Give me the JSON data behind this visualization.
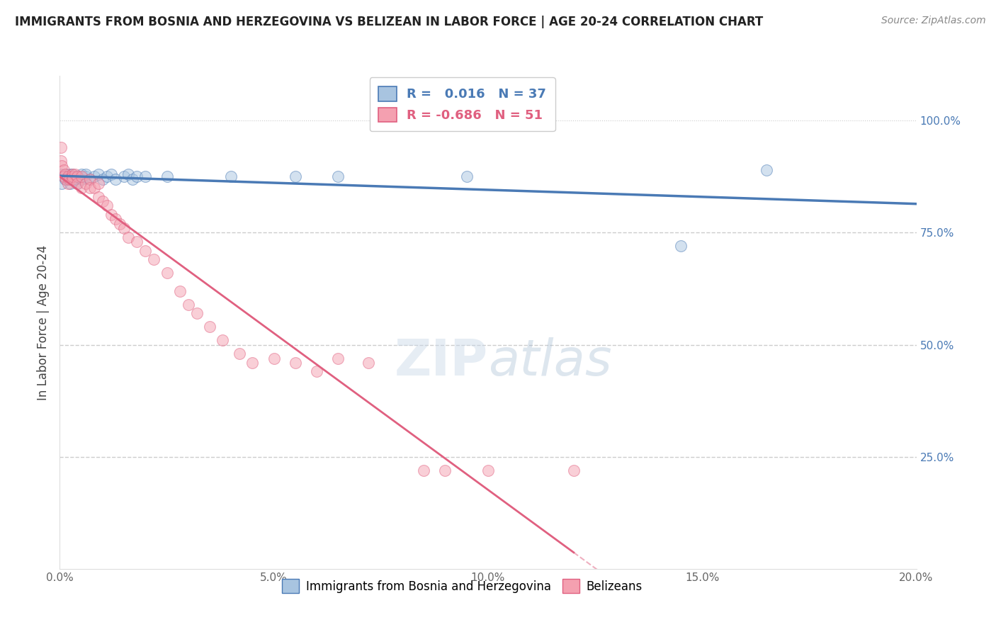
{
  "title": "IMMIGRANTS FROM BOSNIA AND HERZEGOVINA VS BELIZEAN IN LABOR FORCE | AGE 20-24 CORRELATION CHART",
  "source": "Source: ZipAtlas.com",
  "ylabel": "In Labor Force | Age 20-24",
  "legend_blue_label": "Immigrants from Bosnia and Herzegovina",
  "legend_pink_label": "Belizeans",
  "R_blue": 0.016,
  "N_blue": 37,
  "R_pink": -0.686,
  "N_pink": 51,
  "blue_color": "#a8c4e0",
  "pink_color": "#f4a0b0",
  "blue_line_color": "#4a7ab5",
  "pink_line_color": "#e06080",
  "blue_scatter_x": [
    0.0003,
    0.0005,
    0.001,
    0.0012,
    0.0015,
    0.002,
    0.002,
    0.0022,
    0.0025,
    0.003,
    0.003,
    0.0035,
    0.004,
    0.004,
    0.005,
    0.005,
    0.006,
    0.006,
    0.007,
    0.008,
    0.009,
    0.01,
    0.011,
    0.012,
    0.013,
    0.015,
    0.016,
    0.017,
    0.018,
    0.02,
    0.025,
    0.04,
    0.055,
    0.065,
    0.095,
    0.145,
    0.165
  ],
  "blue_scatter_y": [
    0.88,
    0.86,
    0.875,
    0.87,
    0.88,
    0.87,
    0.875,
    0.88,
    0.86,
    0.875,
    0.88,
    0.87,
    0.86,
    0.875,
    0.88,
    0.87,
    0.875,
    0.88,
    0.87,
    0.875,
    0.88,
    0.87,
    0.875,
    0.88,
    0.87,
    0.875,
    0.88,
    0.87,
    0.875,
    0.875,
    0.875,
    0.875,
    0.875,
    0.875,
    0.875,
    0.72,
    0.89
  ],
  "pink_scatter_x": [
    0.0002,
    0.0003,
    0.0005,
    0.001,
    0.001,
    0.0012,
    0.0015,
    0.002,
    0.002,
    0.0022,
    0.003,
    0.003,
    0.003,
    0.0035,
    0.004,
    0.004,
    0.005,
    0.005,
    0.006,
    0.007,
    0.007,
    0.008,
    0.009,
    0.009,
    0.01,
    0.011,
    0.012,
    0.013,
    0.014,
    0.015,
    0.016,
    0.018,
    0.02,
    0.022,
    0.025,
    0.028,
    0.03,
    0.032,
    0.035,
    0.038,
    0.042,
    0.045,
    0.05,
    0.055,
    0.06,
    0.065,
    0.072,
    0.085,
    0.09,
    0.1,
    0.12
  ],
  "pink_scatter_y": [
    0.94,
    0.91,
    0.9,
    0.89,
    0.875,
    0.88,
    0.87,
    0.875,
    0.86,
    0.87,
    0.88,
    0.87,
    0.875,
    0.88,
    0.875,
    0.86,
    0.875,
    0.85,
    0.86,
    0.87,
    0.85,
    0.85,
    0.86,
    0.83,
    0.82,
    0.81,
    0.79,
    0.78,
    0.77,
    0.76,
    0.74,
    0.73,
    0.71,
    0.69,
    0.66,
    0.62,
    0.59,
    0.57,
    0.54,
    0.51,
    0.48,
    0.46,
    0.47,
    0.46,
    0.44,
    0.47,
    0.46,
    0.22,
    0.22,
    0.22,
    0.22
  ],
  "xlim": [
    0.0,
    0.2
  ],
  "ylim": [
    0.0,
    1.1
  ],
  "yticks_right": [
    1.0,
    0.75,
    0.5,
    0.25
  ],
  "ytick_labels_right": [
    "100.0%",
    "75.0%",
    "50.0%",
    "25.0%"
  ],
  "xtick_labels": [
    "0.0%",
    "5.0%",
    "10.0%",
    "15.0%",
    "20.0%"
  ],
  "xticks": [
    0.0,
    0.05,
    0.1,
    0.15,
    0.2
  ],
  "grid_color": "#cccccc",
  "background_color": "#ffffff",
  "title_fontsize": 12,
  "marker_size": 130,
  "marker_alpha": 0.5
}
